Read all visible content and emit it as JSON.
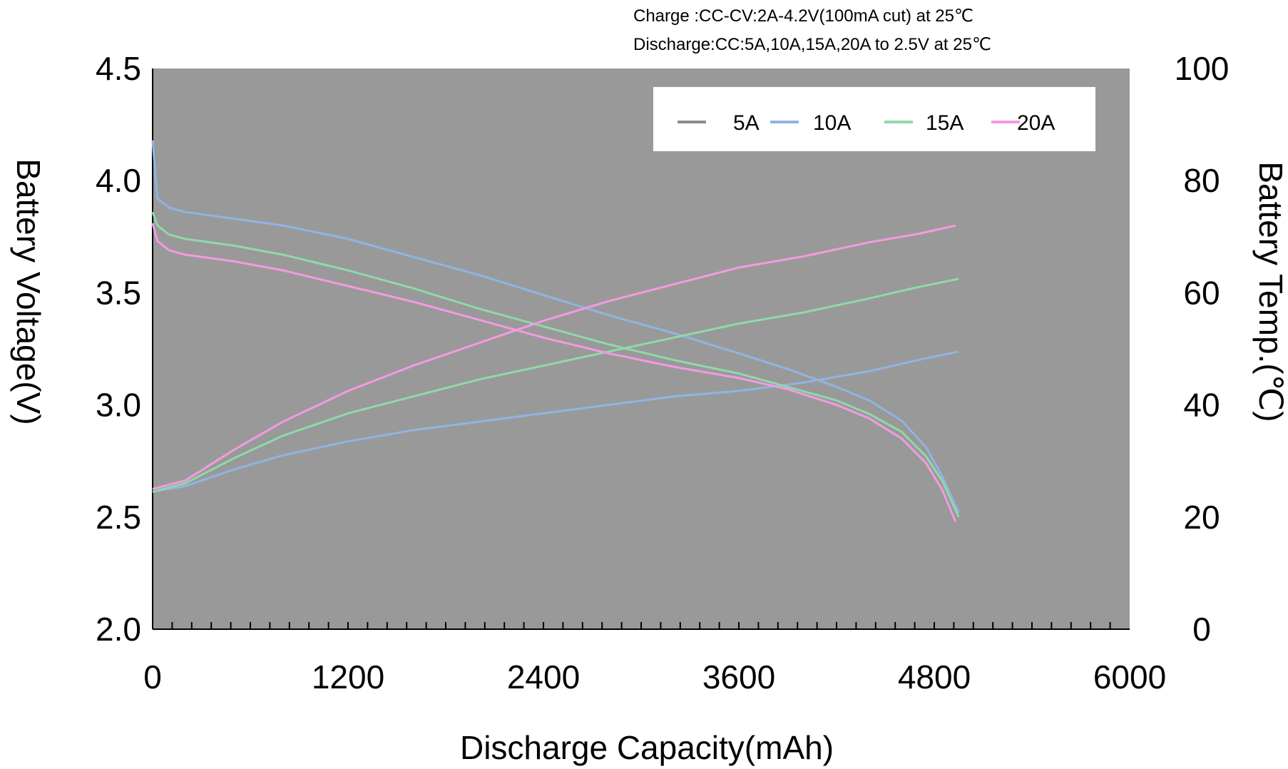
{
  "chart_data": {
    "type": "line",
    "notes": [
      "Charge :CC-CV:2A-4.2V(100mA cut) at 25℃",
      "Discharge:CC:5A,10A,15A,20A to 2.5V at 25℃"
    ],
    "xlabel": "Discharge Capacity(mAh)",
    "ylabel": "Battery Voltage(V)",
    "y2label": "Battery Temp.(℃)",
    "xlim": [
      0,
      6000
    ],
    "ylim": [
      2.0,
      4.5
    ],
    "y2lim": [
      0,
      100
    ],
    "xticks": [
      "0",
      "1200",
      "2400",
      "3600",
      "4800",
      "6000"
    ],
    "yticks": [
      "2.0",
      "2.5",
      "3.0",
      "3.5",
      "4.0",
      "4.5"
    ],
    "y2ticks": [
      "0",
      "20",
      "40",
      "60",
      "80",
      "100"
    ],
    "legend_position": "top-right",
    "plot_background": "#999999",
    "series": [
      {
        "name": "5A",
        "color": "#8c8c8c",
        "voltage": [],
        "temperature": []
      },
      {
        "name": "10A",
        "color": "#8fb4e3",
        "voltage": [
          [
            0,
            4.18
          ],
          [
            30,
            3.92
          ],
          [
            100,
            3.88
          ],
          [
            200,
            3.86
          ],
          [
            500,
            3.83
          ],
          [
            800,
            3.8
          ],
          [
            1200,
            3.74
          ],
          [
            1600,
            3.66
          ],
          [
            2000,
            3.58
          ],
          [
            2400,
            3.49
          ],
          [
            2800,
            3.4
          ],
          [
            3200,
            3.32
          ],
          [
            3600,
            3.23
          ],
          [
            3900,
            3.16
          ],
          [
            4200,
            3.08
          ],
          [
            4400,
            3.02
          ],
          [
            4600,
            2.93
          ],
          [
            4750,
            2.81
          ],
          [
            4850,
            2.68
          ],
          [
            4950,
            2.52
          ]
        ],
        "temperature": [
          [
            0,
            24.5
          ],
          [
            200,
            25.5
          ],
          [
            500,
            28.5
          ],
          [
            800,
            31
          ],
          [
            1200,
            33.5
          ],
          [
            1600,
            35.5
          ],
          [
            2000,
            37
          ],
          [
            2400,
            38.5
          ],
          [
            2800,
            40
          ],
          [
            3200,
            41.5
          ],
          [
            3600,
            42.5
          ],
          [
            4000,
            44
          ],
          [
            4400,
            46
          ],
          [
            4700,
            48
          ],
          [
            4950,
            49.5
          ]
        ]
      },
      {
        "name": "15A",
        "color": "#8fd9a8",
        "voltage": [
          [
            0,
            3.86
          ],
          [
            30,
            3.8
          ],
          [
            100,
            3.76
          ],
          [
            200,
            3.74
          ],
          [
            500,
            3.71
          ],
          [
            800,
            3.67
          ],
          [
            1200,
            3.6
          ],
          [
            1600,
            3.52
          ],
          [
            2000,
            3.43
          ],
          [
            2400,
            3.35
          ],
          [
            2800,
            3.27
          ],
          [
            3200,
            3.2
          ],
          [
            3600,
            3.14
          ],
          [
            3900,
            3.08
          ],
          [
            4200,
            3.02
          ],
          [
            4400,
            2.96
          ],
          [
            4600,
            2.88
          ],
          [
            4750,
            2.77
          ],
          [
            4850,
            2.66
          ],
          [
            4950,
            2.5
          ]
        ],
        "temperature": [
          [
            0,
            24.5
          ],
          [
            200,
            26
          ],
          [
            500,
            30.5
          ],
          [
            800,
            34.5
          ],
          [
            1200,
            38.5
          ],
          [
            1600,
            41.5
          ],
          [
            2000,
            44.5
          ],
          [
            2400,
            47
          ],
          [
            2800,
            49.5
          ],
          [
            3200,
            52
          ],
          [
            3600,
            54.5
          ],
          [
            4000,
            56.5
          ],
          [
            4400,
            59
          ],
          [
            4700,
            61
          ],
          [
            4950,
            62.5
          ]
        ]
      },
      {
        "name": "20A",
        "color": "#f49ae0",
        "voltage": [
          [
            0,
            3.81
          ],
          [
            30,
            3.73
          ],
          [
            100,
            3.69
          ],
          [
            200,
            3.67
          ],
          [
            500,
            3.64
          ],
          [
            800,
            3.6
          ],
          [
            1200,
            3.53
          ],
          [
            1600,
            3.46
          ],
          [
            2000,
            3.38
          ],
          [
            2400,
            3.3
          ],
          [
            2800,
            3.23
          ],
          [
            3200,
            3.17
          ],
          [
            3600,
            3.12
          ],
          [
            3900,
            3.07
          ],
          [
            4200,
            3.0
          ],
          [
            4400,
            2.94
          ],
          [
            4600,
            2.85
          ],
          [
            4750,
            2.74
          ],
          [
            4850,
            2.62
          ],
          [
            4930,
            2.48
          ]
        ],
        "temperature": [
          [
            0,
            25
          ],
          [
            200,
            26.5
          ],
          [
            500,
            32
          ],
          [
            800,
            37
          ],
          [
            1200,
            42.5
          ],
          [
            1600,
            47
          ],
          [
            2000,
            51
          ],
          [
            2400,
            55
          ],
          [
            2800,
            58.5
          ],
          [
            3200,
            61.5
          ],
          [
            3600,
            64.5
          ],
          [
            4000,
            66.5
          ],
          [
            4400,
            69
          ],
          [
            4700,
            70.5
          ],
          [
            4930,
            72
          ]
        ]
      }
    ]
  }
}
